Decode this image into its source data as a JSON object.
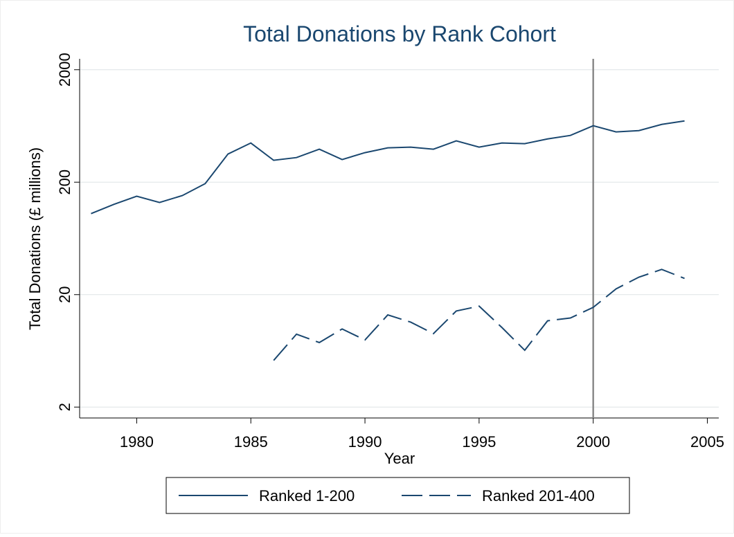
{
  "chart_data": {
    "type": "line",
    "title": "Total Donations by Rank Cohort",
    "x_label": "Year",
    "y_label": "Total Donations (£ millions)",
    "x": [
      1978,
      1979,
      1980,
      1981,
      1982,
      1983,
      1984,
      1985,
      1986,
      1987,
      1988,
      1989,
      1990,
      1991,
      1992,
      1993,
      1994,
      1995,
      1996,
      1997,
      1998,
      1999,
      2000,
      2001,
      2002,
      2003,
      2004
    ],
    "series": [
      {
        "name": "Ranked 1-200",
        "color": "#1a476f",
        "dash": "solid",
        "values": [
          105,
          127,
          150,
          132,
          152,
          194,
          356,
          446,
          313,
          331,
          393,
          318,
          366,
          404,
          410,
          393,
          466,
          410,
          446,
          440,
          485,
          521,
          635,
          560,
          575,
          653,
          701
        ]
      },
      {
        "name": "Ranked 201-400",
        "color": "#1a476f",
        "dash": "dashed",
        "values": [
          null,
          null,
          null,
          null,
          null,
          null,
          null,
          null,
          5.2,
          8.9,
          7.5,
          9.9,
          7.9,
          13.2,
          11.4,
          9.0,
          14.3,
          15.8,
          10.2,
          6.4,
          11.7,
          12.4,
          15.4,
          22.5,
          28.6,
          33.5,
          27.9
        ]
      }
    ],
    "xlim": [
      1977.5,
      2005.5
    ],
    "xticks": [
      1980,
      1985,
      1990,
      1995,
      2000,
      2005
    ],
    "ylim": [
      1.6,
      2500
    ],
    "yticks": [
      2,
      20,
      200,
      2000
    ],
    "y_scale": "log",
    "grid": true,
    "vline": 2000,
    "legend": "bottom"
  }
}
